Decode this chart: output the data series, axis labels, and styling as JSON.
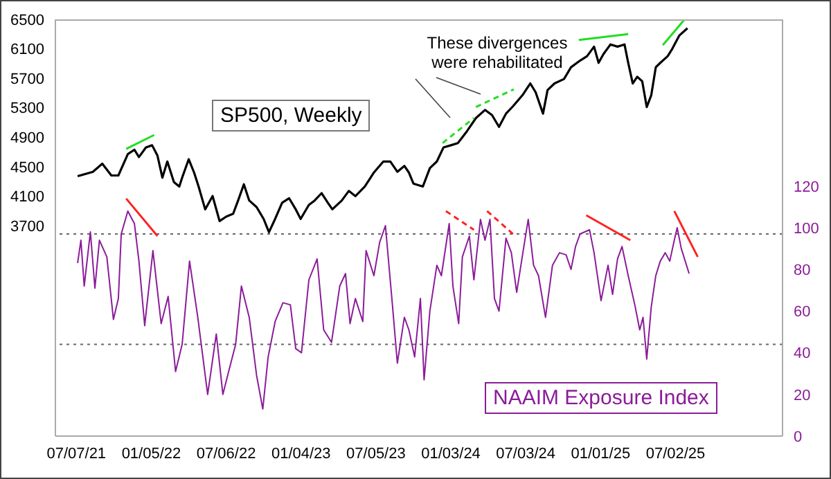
{
  "chart_data": {
    "type": "line",
    "annotations": [
      "These divergences were rehabilitated"
    ],
    "xlim": [
      "2021-05-17",
      "2026-03-19"
    ],
    "xticks": [
      {
        "value": "2021-07-07",
        "label": "07/07/21"
      },
      {
        "value": "2022-01-05",
        "label": "01/05/22"
      },
      {
        "value": "2022-07-06",
        "label": "07/06/22"
      },
      {
        "value": "2023-01-04",
        "label": "01/04/23"
      },
      {
        "value": "2023-07-05",
        "label": "07/05/23"
      },
      {
        "value": "2024-01-03",
        "label": "01/03/24"
      },
      {
        "value": "2024-07-03",
        "label": "07/03/24"
      },
      {
        "value": "2025-01-01",
        "label": "01/01/25"
      },
      {
        "value": "2025-07-02",
        "label": "07/02/25"
      }
    ],
    "ylim": [
      840,
      6500
    ],
    "yticks": [
      3700,
      4100,
      4500,
      4900,
      5300,
      5700,
      6100,
      6500
    ],
    "y2lim": [
      0,
      200
    ],
    "y2ticks": [
      0,
      20,
      40,
      60,
      80,
      100,
      120
    ],
    "marker": "none",
    "ref_lines": [
      {
        "axis": "y2",
        "value": 97,
        "color": "#666666",
        "line_style": "dotted"
      },
      {
        "axis": "y2",
        "value": 44,
        "color": "#666666",
        "line_style": "dotted"
      }
    ],
    "series": [
      {
        "name": "SP500, Weekly",
        "axis": "y",
        "color": "#000000",
        "x": [
          "2021-07-10",
          "2021-08-16",
          "2021-09-08",
          "2021-09-30",
          "2021-10-17",
          "2021-11-09",
          "2021-11-25",
          "2021-12-06",
          "2021-12-23",
          "2022-01-07",
          "2022-01-20",
          "2022-02-01",
          "2022-02-13",
          "2022-03-01",
          "2022-03-14",
          "2022-03-21",
          "2022-04-06",
          "2022-04-19",
          "2022-04-30",
          "2022-05-16",
          "2022-06-03",
          "2022-06-20",
          "2022-07-06",
          "2022-07-23",
          "2022-08-04",
          "2022-08-18",
          "2022-08-31",
          "2022-09-18",
          "2022-10-05",
          "2022-10-18",
          "2022-11-02",
          "2022-11-19",
          "2022-12-06",
          "2022-12-22",
          "2023-01-03",
          "2023-01-23",
          "2023-02-06",
          "2023-02-23",
          "2023-03-10",
          "2023-03-21",
          "2023-04-13",
          "2023-04-30",
          "2023-05-16",
          "2023-06-08",
          "2023-06-30",
          "2023-07-23",
          "2023-08-09",
          "2023-08-26",
          "2023-09-12",
          "2023-09-23",
          "2023-10-04",
          "2023-10-27",
          "2023-11-13",
          "2023-11-30",
          "2023-12-16",
          "2024-01-03",
          "2024-01-20",
          "2024-02-11",
          "2024-03-04",
          "2024-03-26",
          "2024-04-12",
          "2024-04-29",
          "2024-05-16",
          "2024-06-02",
          "2024-06-25",
          "2024-07-14",
          "2024-07-27",
          "2024-08-14",
          "2024-08-25",
          "2024-09-11",
          "2024-10-04",
          "2024-10-21",
          "2024-11-12",
          "2024-11-29",
          "2024-12-16",
          "2024-12-27",
          "2025-01-08",
          "2025-01-25",
          "2025-02-11",
          "2025-02-28",
          "2025-03-09",
          "2025-03-20",
          "2025-03-31",
          "2025-04-12",
          "2025-04-23",
          "2025-05-04",
          "2025-05-15",
          "2025-05-26",
          "2025-06-13",
          "2025-06-24",
          "2025-07-11",
          "2025-07-31"
        ],
        "values": [
          4370,
          4430,
          4540,
          4380,
          4380,
          4670,
          4730,
          4630,
          4760,
          4790,
          4650,
          4350,
          4570,
          4290,
          4230,
          4350,
          4600,
          4420,
          4230,
          3920,
          4100,
          3760,
          3820,
          3860,
          4040,
          4260,
          4040,
          3950,
          3790,
          3610,
          3790,
          4010,
          4070,
          3920,
          3790,
          3980,
          4040,
          4140,
          4010,
          3920,
          4040,
          4170,
          4100,
          4230,
          4420,
          4570,
          4570,
          4430,
          4510,
          4420,
          4270,
          4230,
          4480,
          4570,
          4760,
          4790,
          4820,
          4980,
          5160,
          5270,
          5200,
          5040,
          5220,
          5320,
          5470,
          5630,
          5510,
          5220,
          5540,
          5630,
          5690,
          5850,
          5940,
          6000,
          6130,
          5910,
          6030,
          6160,
          6130,
          6160,
          5910,
          5630,
          5720,
          5660,
          5310,
          5470,
          5850,
          5910,
          6000,
          6100,
          6280,
          6380
        ]
      },
      {
        "name": "NAAIM Exposure Index",
        "axis": "y2",
        "color": "#8b1c99",
        "x": [
          "2021-07-10",
          "2021-07-18",
          "2021-07-26",
          "2021-08-10",
          "2021-08-21",
          "2021-09-01",
          "2021-09-19",
          "2021-10-05",
          "2021-10-17",
          "2021-10-24",
          "2021-11-09",
          "2021-11-25",
          "2021-12-06",
          "2021-12-20",
          "2022-01-09",
          "2022-01-29",
          "2022-02-15",
          "2022-03-05",
          "2022-03-21",
          "2022-04-08",
          "2022-04-28",
          "2022-05-22",
          "2022-06-12",
          "2022-06-28",
          "2022-07-12",
          "2022-07-29",
          "2022-08-12",
          "2022-08-31",
          "2022-09-18",
          "2022-10-03",
          "2022-10-16",
          "2022-11-02",
          "2022-11-21",
          "2022-12-09",
          "2022-12-22",
          "2023-01-05",
          "2023-01-23",
          "2023-02-12",
          "2023-02-28",
          "2023-03-19",
          "2023-04-08",
          "2023-04-22",
          "2023-05-03",
          "2023-05-16",
          "2023-06-03",
          "2023-06-11",
          "2023-06-30",
          "2023-07-14",
          "2023-07-28",
          "2023-08-14",
          "2023-08-26",
          "2023-09-12",
          "2023-09-23",
          "2023-10-07",
          "2023-10-21",
          "2023-10-30",
          "2023-11-13",
          "2023-11-30",
          "2023-12-11",
          "2023-12-30",
          "2024-01-08",
          "2024-01-22",
          "2024-01-31",
          "2024-02-17",
          "2024-02-28",
          "2024-03-15",
          "2024-03-26",
          "2024-04-07",
          "2024-04-18",
          "2024-04-29",
          "2024-05-16",
          "2024-05-29",
          "2024-06-11",
          "2024-06-26",
          "2024-07-09",
          "2024-07-22",
          "2024-08-03",
          "2024-08-20",
          "2024-09-06",
          "2024-09-23",
          "2024-10-09",
          "2024-10-21",
          "2024-11-01",
          "2024-11-12",
          "2024-12-05",
          "2024-12-16",
          "2025-01-02",
          "2025-01-19",
          "2025-01-30",
          "2025-02-11",
          "2025-02-22",
          "2025-03-09",
          "2025-03-25",
          "2025-04-06",
          "2025-04-14",
          "2025-04-23",
          "2025-05-04",
          "2025-05-15",
          "2025-05-26",
          "2025-06-07",
          "2025-06-18",
          "2025-06-29",
          "2025-07-06",
          "2025-07-16",
          "2025-08-04"
        ],
        "values": [
          83,
          94,
          72,
          98,
          71,
          94,
          86,
          56,
          66,
          97,
          108,
          102,
          84,
          53,
          89,
          54,
          67,
          31,
          44,
          84,
          57,
          20,
          49,
          20,
          31,
          44,
          72,
          57,
          29,
          13,
          38,
          55,
          64,
          63,
          42,
          40,
          75,
          85,
          51,
          45,
          72,
          78,
          54,
          66,
          55,
          89,
          77,
          93,
          101,
          63,
          35,
          57,
          51,
          38,
          66,
          27,
          60,
          82,
          77,
          102,
          72,
          54,
          86,
          96,
          75,
          104,
          94,
          104,
          66,
          60,
          95,
          88,
          69,
          88,
          104,
          82,
          77,
          57,
          82,
          88,
          87,
          80,
          91,
          97,
          99,
          88,
          65,
          82,
          68,
          85,
          91,
          77,
          63,
          51,
          57,
          37,
          62,
          77,
          84,
          88,
          84,
          94,
          100,
          90,
          78
        ]
      },
      {
        "type": "line",
        "axis": "y",
        "color": "#22dd22",
        "x": [
          "2021-11-05",
          "2022-01-12"
        ],
        "values": [
          4740,
          4930
        ]
      },
      {
        "type": "line",
        "axis": "y",
        "color": "#22dd22",
        "line_style": "dashed",
        "x": [
          "2023-12-14",
          "2024-02-28"
        ],
        "values": [
          4820,
          5160
        ]
      },
      {
        "type": "line",
        "axis": "y",
        "color": "#22dd22",
        "line_style": "dashed",
        "x": [
          "2024-03-04",
          "2024-06-04"
        ],
        "values": [
          5310,
          5550
        ]
      },
      {
        "type": "line",
        "axis": "y",
        "color": "#22dd22",
        "x": [
          "2024-11-09",
          "2025-03-09"
        ],
        "values": [
          6220,
          6300
        ]
      },
      {
        "type": "line",
        "axis": "y",
        "color": "#22dd22",
        "x": [
          "2025-06-01",
          "2025-07-24"
        ],
        "values": [
          6150,
          6500
        ]
      },
      {
        "type": "line",
        "axis": "y2",
        "color": "#ff2222",
        "x": [
          "2021-11-05",
          "2022-01-20"
        ],
        "values": [
          114,
          96
        ]
      },
      {
        "type": "line",
        "axis": "y2",
        "color": "#ff2222",
        "line_style": "dashed",
        "x": [
          "2023-12-22",
          "2024-02-28"
        ],
        "values": [
          108,
          99
        ]
      },
      {
        "type": "line",
        "axis": "y2",
        "color": "#ff2222",
        "line_style": "dashed",
        "x": [
          "2024-03-31",
          "2024-06-02"
        ],
        "values": [
          108,
          97
        ]
      },
      {
        "type": "line",
        "axis": "y2",
        "color": "#ff2222",
        "x": [
          "2024-11-27",
          "2025-03-14"
        ],
        "values": [
          106,
          94
        ]
      },
      {
        "type": "line",
        "axis": "y2",
        "color": "#ff2222",
        "x": [
          "2025-06-29",
          "2025-08-25"
        ],
        "values": [
          108,
          86
        ]
      }
    ]
  }
}
